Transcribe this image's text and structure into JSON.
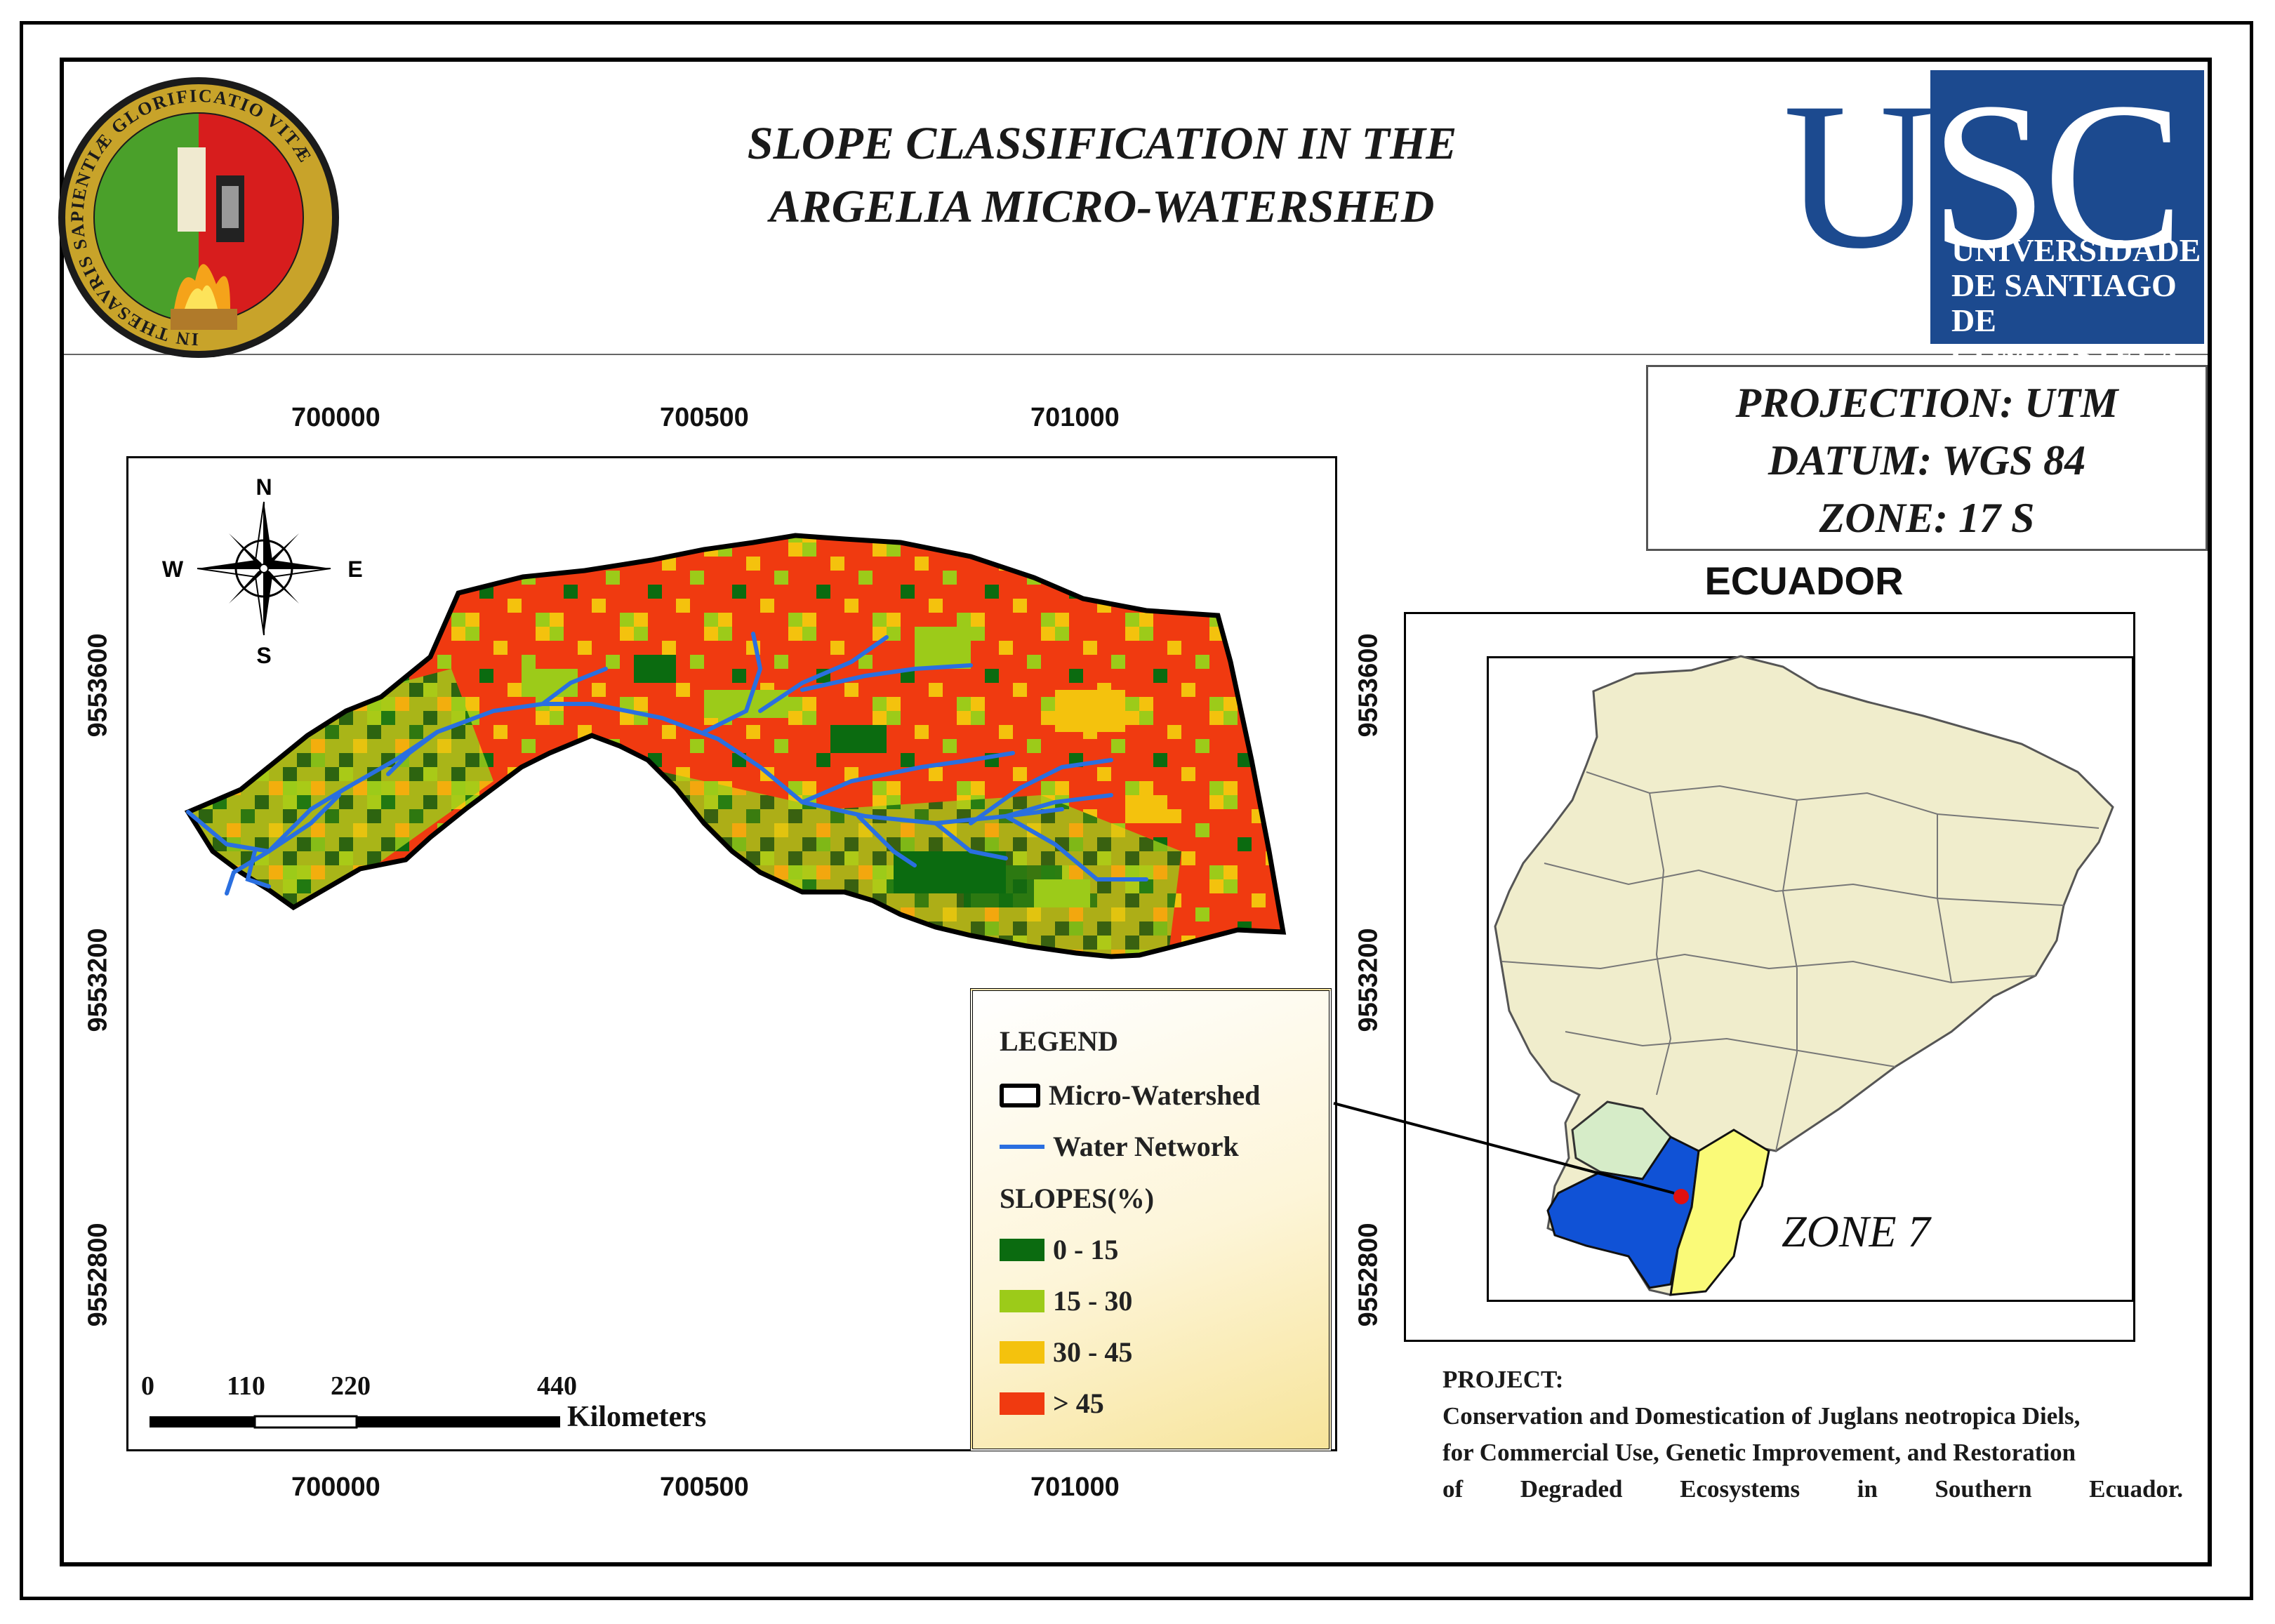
{
  "title": {
    "line1": "SLOPE CLASSIFICATION IN THE",
    "line2": "ARGELIA MICRO-WATERSHED"
  },
  "seal": {
    "ring_text": "IN THESAVRIS SAPIENTIÆ GLORIFICATIO VITÆ"
  },
  "logo_usc": {
    "letters_left": "U",
    "letters_panel": "SC",
    "line1": "UNIVERSIDADE",
    "line2": "DE SANTIAGO",
    "line3": "DE COMPOSTELA",
    "color": "#1c4a8f"
  },
  "projection": {
    "line1": "PROJECTION: UTM",
    "line2": "DATUM: WGS 84",
    "line3": "ZONE: 17 S"
  },
  "inset": {
    "title": "ECUADOR",
    "zone_label": "ZONE 7",
    "colors": {
      "country": "#f0edcc",
      "loja": "#1052d6",
      "zamora": "#fafa78",
      "el_oro": "#d6ecc8",
      "site": "#e01010"
    }
  },
  "grid": {
    "x_labels": [
      "700000",
      "700500",
      "701000"
    ],
    "y_labels": [
      "9553600",
      "9553200",
      "9552800"
    ]
  },
  "compass": {
    "n": "N",
    "s": "S",
    "e": "E",
    "w": "W"
  },
  "legend": {
    "title": "LEGEND",
    "watershed": "Micro-Watershed",
    "water": "Water Network",
    "slopes_title": "SLOPES(%)",
    "classes": [
      {
        "label": "0 - 15",
        "color": "#0b6b10"
      },
      {
        "label": "15 - 30",
        "color": "#9ccb19"
      },
      {
        "label": "30 - 45",
        "color": "#f4c20d"
      },
      {
        "label": "> 45",
        "color": "#f03a10"
      }
    ],
    "water_color": "#2a6fe0"
  },
  "scalebar": {
    "ticks": [
      "0",
      "110",
      "220",
      "440"
    ],
    "unit": "Kilometers"
  },
  "project": {
    "heading": "PROJECT:",
    "line1": "Conservation and Domestication of Juglans neotropica Diels,",
    "line2": "for Commercial Use, Genetic Improvement, and Restoration",
    "line3": "of Degraded Ecosystems in Southern Ecuador."
  }
}
